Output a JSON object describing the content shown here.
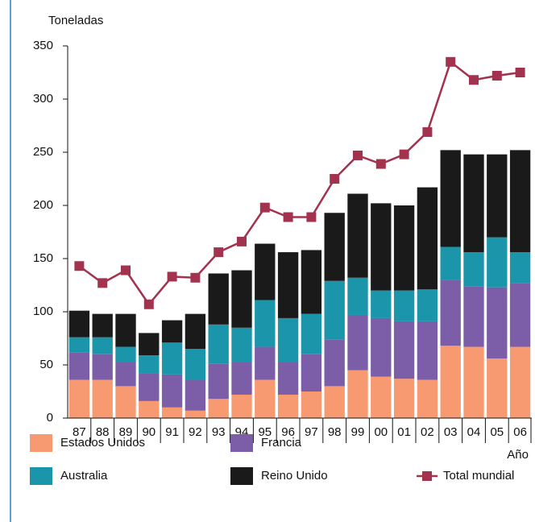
{
  "chart_data": {
    "type": "stacked_bar",
    "y_label": "Toneladas",
    "x_label": "Año",
    "categories": [
      "87",
      "88",
      "89",
      "90",
      "91",
      "92",
      "93",
      "94",
      "95",
      "96",
      "97",
      "98",
      "99",
      "00",
      "01",
      "02",
      "03",
      "04",
      "05",
      "06"
    ],
    "series": [
      {
        "name": "Estados Unidos",
        "color": "#f79a72",
        "values": [
          36,
          36,
          30,
          16,
          10,
          7,
          18,
          22,
          36,
          22,
          25,
          30,
          45,
          39,
          37,
          36,
          68,
          67,
          56,
          67
        ]
      },
      {
        "name": "Francia",
        "color": "#7b5ea7",
        "values": [
          26,
          24,
          23,
          26,
          31,
          29,
          33,
          31,
          31,
          31,
          35,
          44,
          52,
          55,
          54,
          55,
          62,
          57,
          67,
          60
        ]
      },
      {
        "name": "Australia",
        "color": "#1a95aa",
        "values": [
          14,
          16,
          14,
          17,
          30,
          29,
          37,
          32,
          44,
          41,
          38,
          55,
          35,
          26,
          29,
          30,
          31,
          32,
          47,
          29
        ]
      },
      {
        "name": "Reino Unido",
        "color": "#1a1a1a",
        "values": [
          25,
          22,
          31,
          21,
          21,
          33,
          48,
          54,
          53,
          62,
          60,
          64,
          79,
          82,
          80,
          96,
          91,
          92,
          78,
          96
        ]
      }
    ],
    "line": {
      "name": "Total mundial",
      "color": "#a3324f",
      "values": [
        143,
        127,
        139,
        107,
        133,
        132,
        156,
        166,
        198,
        189,
        189,
        225,
        247,
        239,
        248,
        269,
        335,
        318,
        322,
        325
      ]
    },
    "ylim": [
      0,
      350
    ],
    "yticks": [
      0,
      50,
      100,
      150,
      200,
      250,
      300,
      350
    ],
    "grid": false,
    "legend": "bottom"
  }
}
